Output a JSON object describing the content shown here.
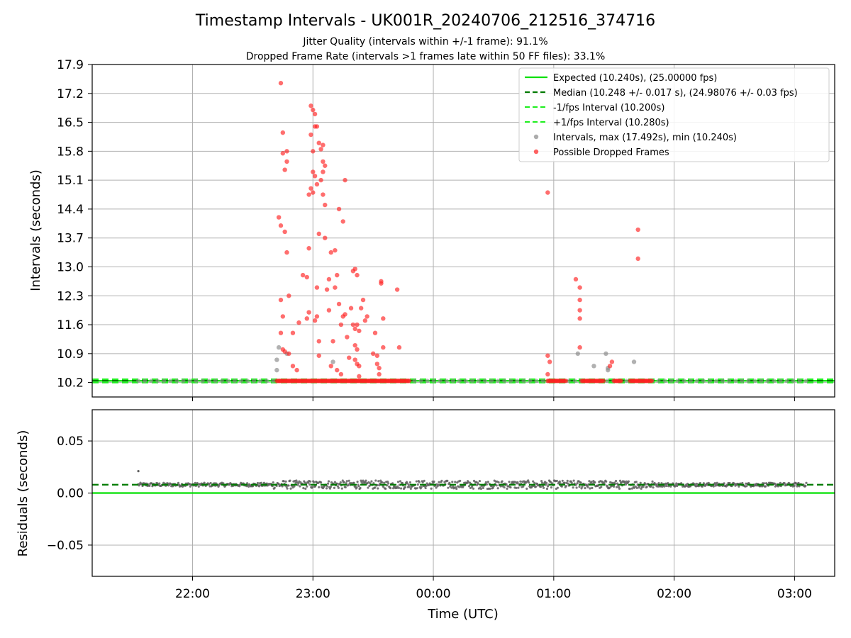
{
  "title": "Timestamp Intervals - UK001R_20240706_212516_374716",
  "subtitle_lines": [
    "Jitter Quality (intervals within +/-1 frame): 91.1%",
    "Dropped Frame Rate (intervals >1 frames late within 50 FF files): 33.1%"
  ],
  "colors": {
    "expected": "#00e000",
    "median": "#007a00",
    "fps_interval": "#22ee22",
    "intervals": "#909090",
    "dropped": "#ff2020",
    "residuals": "#606060",
    "grid": "#b0b0b0"
  },
  "chart_data": [
    {
      "type": "scatter",
      "xlabel": "",
      "ylabel": "Intervals (seconds)",
      "ylim": [
        9.85,
        17.9
      ],
      "y_ticks": [
        "10.2",
        "10.9",
        "11.6",
        "12.3",
        "13.0",
        "13.7",
        "14.4",
        "15.1",
        "15.8",
        "16.5",
        "17.2",
        "17.9"
      ],
      "grid": true,
      "legend_position": "top-right",
      "reference_lines": [
        {
          "name": "Expected (10.240s), (25.00000 fps)",
          "value": 10.24,
          "style": "solid",
          "color": "#00e000"
        },
        {
          "name": "Median (10.248 +/- 0.017 s), (24.98076 +/- 0.03 fps)",
          "value": 10.248,
          "style": "dashed",
          "color": "#007a00"
        },
        {
          "name": "-1/fps Interval (10.200s)",
          "value": 10.2,
          "style": "dashed",
          "color": "#22ee22"
        },
        {
          "name": "+1/fps Interval (10.280s)",
          "value": 10.28,
          "style": "dashed",
          "color": "#22ee22"
        }
      ],
      "series": [
        {
          "name": "Intervals, max (17.492s), min (10.240s)",
          "color": "#909090",
          "points": [
            [
              "22:42",
              10.5
            ],
            [
              "22:42",
              10.75
            ],
            [
              "22:43",
              11.05
            ],
            [
              "22:47",
              10.9
            ],
            [
              "23:10",
              10.7
            ],
            [
              "01:12",
              10.9
            ],
            [
              "01:20",
              10.6
            ],
            [
              "01:26",
              10.9
            ],
            [
              "01:27",
              10.55
            ],
            [
              "01:27",
              10.5
            ],
            [
              "01:40",
              10.7
            ]
          ]
        },
        {
          "name": "Possible Dropped Frames",
          "color": "#ff2020",
          "points": [
            [
              "22:44",
              17.45
            ],
            [
              "22:43",
              14.2
            ],
            [
              "22:44",
              14.0
            ],
            [
              "22:46",
              13.85
            ],
            [
              "22:47",
              13.35
            ],
            [
              "22:45",
              16.25
            ],
            [
              "22:45",
              15.75
            ],
            [
              "22:47",
              15.8
            ],
            [
              "22:47",
              15.55
            ],
            [
              "22:46",
              15.35
            ],
            [
              "22:44",
              12.2
            ],
            [
              "22:45",
              11.8
            ],
            [
              "22:44",
              11.4
            ],
            [
              "22:45",
              11.0
            ],
            [
              "22:48",
              12.3
            ],
            [
              "22:50",
              11.4
            ],
            [
              "22:46",
              10.95
            ],
            [
              "22:48",
              10.9
            ],
            [
              "22:50",
              10.6
            ],
            [
              "22:52",
              10.5
            ],
            [
              "22:53",
              11.65
            ],
            [
              "22:55",
              12.8
            ],
            [
              "22:57",
              12.75
            ],
            [
              "22:57",
              11.75
            ],
            [
              "22:58",
              11.9
            ],
            [
              "22:58",
              13.45
            ],
            [
              "22:59",
              16.9
            ],
            [
              "23:00",
              16.8
            ],
            [
              "23:01",
              16.7
            ],
            [
              "22:59",
              16.2
            ],
            [
              "23:01",
              16.4
            ],
            [
              "23:02",
              16.4
            ],
            [
              "23:00",
              15.8
            ],
            [
              "23:00",
              15.3
            ],
            [
              "23:01",
              15.2
            ],
            [
              "23:02",
              15.0
            ],
            [
              "22:59",
              14.9
            ],
            [
              "22:58",
              14.75
            ],
            [
              "23:00",
              14.8
            ],
            [
              "23:03",
              16.0
            ],
            [
              "23:04",
              15.85
            ],
            [
              "23:05",
              15.95
            ],
            [
              "23:05",
              15.55
            ],
            [
              "23:06",
              15.45
            ],
            [
              "23:05",
              15.3
            ],
            [
              "23:04",
              15.1
            ],
            [
              "23:05",
              14.75
            ],
            [
              "23:06",
              14.5
            ],
            [
              "23:03",
              13.8
            ],
            [
              "23:06",
              13.7
            ],
            [
              "23:02",
              12.5
            ],
            [
              "23:03",
              11.2
            ],
            [
              "23:03",
              10.85
            ],
            [
              "23:02",
              11.8
            ],
            [
              "23:01",
              11.7
            ],
            [
              "23:07",
              12.45
            ],
            [
              "23:08",
              12.7
            ],
            [
              "23:08",
              11.95
            ],
            [
              "23:09",
              13.35
            ],
            [
              "23:11",
              13.4
            ],
            [
              "23:11",
              12.5
            ],
            [
              "23:12",
              12.8
            ],
            [
              "23:13",
              12.1
            ],
            [
              "23:13",
              14.4
            ],
            [
              "23:14",
              11.6
            ],
            [
              "23:15",
              14.1
            ],
            [
              "23:16",
              15.1
            ],
            [
              "23:15",
              11.8
            ],
            [
              "23:16",
              11.85
            ],
            [
              "23:17",
              11.3
            ],
            [
              "23:18",
              10.8
            ],
            [
              "23:19",
              12.0
            ],
            [
              "23:20",
              12.9
            ],
            [
              "23:21",
              12.95
            ],
            [
              "23:22",
              12.8
            ],
            [
              "23:20",
              11.6
            ],
            [
              "23:21",
              11.5
            ],
            [
              "23:22",
              11.6
            ],
            [
              "23:23",
              11.45
            ],
            [
              "23:21",
              11.1
            ],
            [
              "23:22",
              11.0
            ],
            [
              "23:21",
              10.75
            ],
            [
              "23:22",
              10.65
            ],
            [
              "23:23",
              10.6
            ],
            [
              "23:24",
              12.0
            ],
            [
              "23:25",
              12.2
            ],
            [
              "23:26",
              11.7
            ],
            [
              "23:27",
              11.8
            ],
            [
              "23:30",
              10.9
            ],
            [
              "23:31",
              11.4
            ],
            [
              "23:32",
              10.85
            ],
            [
              "23:32",
              10.65
            ],
            [
              "23:33",
              10.55
            ],
            [
              "23:33",
              10.4
            ],
            [
              "23:34",
              12.65
            ],
            [
              "23:34",
              12.6
            ],
            [
              "23:35",
              11.75
            ],
            [
              "23:35",
              11.05
            ],
            [
              "23:42",
              12.45
            ],
            [
              "23:43",
              11.05
            ],
            [
              "23:10",
              11.2
            ],
            [
              "23:09",
              10.6
            ],
            [
              "23:12",
              10.5
            ],
            [
              "23:14",
              10.4
            ],
            [
              "23:23",
              10.35
            ],
            [
              "00:57",
              14.8
            ],
            [
              "00:57",
              10.85
            ],
            [
              "00:58",
              10.7
            ],
            [
              "00:57",
              10.4
            ],
            [
              "01:11",
              12.7
            ],
            [
              "01:13",
              12.5
            ],
            [
              "01:13",
              12.2
            ],
            [
              "01:13",
              11.95
            ],
            [
              "01:13",
              11.75
            ],
            [
              "01:13",
              11.05
            ],
            [
              "01:29",
              10.7
            ],
            [
              "01:28",
              10.6
            ],
            [
              "01:42",
              13.9
            ],
            [
              "01:42",
              13.2
            ]
          ]
        }
      ],
      "baseline_clusters": [
        [
          "22:42",
          "23:48"
        ],
        [
          "00:57",
          "01:06"
        ],
        [
          "01:14",
          "01:25"
        ],
        [
          "01:30",
          "01:34"
        ],
        [
          "01:38",
          "01:49"
        ]
      ]
    },
    {
      "type": "scatter",
      "xlabel": "Time (UTC)",
      "ylabel": "Residuals (seconds)",
      "ylim": [
        -0.08,
        0.08
      ],
      "y_ticks": [
        "0.05",
        "0.00",
        "−0.05"
      ],
      "x_ticks": [
        "22:00",
        "23:00",
        "00:00",
        "01:00",
        "02:00",
        "03:00"
      ],
      "grid": true,
      "reference_lines": [
        {
          "value": 0.0,
          "style": "solid",
          "color": "#00e000"
        },
        {
          "value": 0.008,
          "style": "dashed",
          "color": "#007a00"
        }
      ],
      "series": [
        {
          "name": "Residuals",
          "color": "#606060",
          "x_range": [
            "21:33",
            "03:06"
          ],
          "center": 0.008,
          "spread": 0.004
        }
      ]
    }
  ],
  "x_axis": {
    "min": "21:10",
    "max": "03:20"
  }
}
